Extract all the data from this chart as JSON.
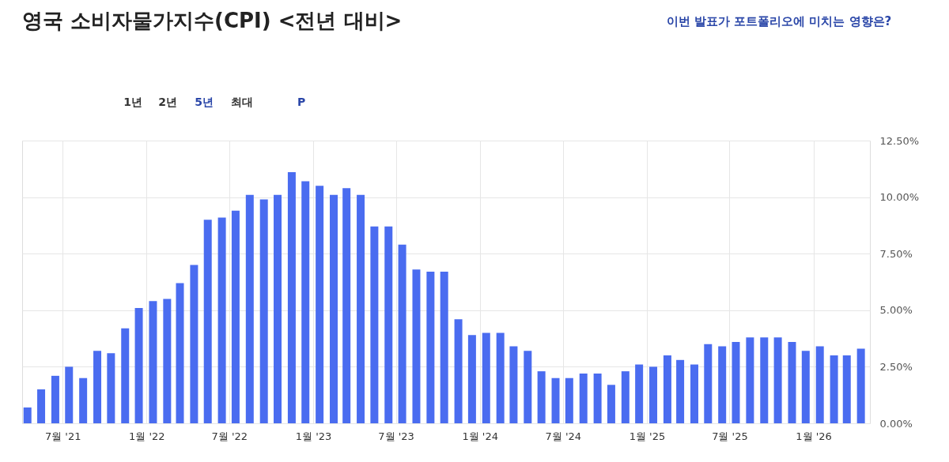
{
  "chart_data": {
    "type": "bar",
    "title": "영국 소비자물가지수(CPI) <전년 대비>",
    "annotations": [
      "1년",
      "2년",
      "5년",
      "최대",
      "P",
      "이번 발표가 포트폴리오에 미치는 영향은?"
    ],
    "x": [
      "2021-04-15",
      "2021-05-15",
      "2021-06-15",
      "2021-07-15",
      "2021-08-15",
      "2021-09-15",
      "2021-10-15",
      "2021-11-15",
      "2021-12-15",
      "2022-01-15",
      "2022-02-15",
      "2022-03-15",
      "2022-04-15",
      "2022-05-15",
      "2022-06-15",
      "2022-07-15",
      "2022-08-15",
      "2022-09-15",
      "2022-10-15",
      "2022-11-15",
      "2022-12-15",
      "2023-01-15",
      "2023-02-15",
      "2023-03-15",
      "2023-04-15",
      "2023-05-15",
      "2023-06-15",
      "2023-07-15",
      "2023-08-15",
      "2023-09-15",
      "2023-10-15",
      "2023-11-15",
      "2023-12-15",
      "2024-01-15",
      "2024-02-15",
      "2024-03-15",
      "2024-04-15",
      "2024-05-15",
      "2024-06-15",
      "2024-07-15",
      "2024-08-15",
      "2024-09-15",
      "2024-10-15",
      "2024-11-15",
      "2024-12-15",
      "2025-01-15",
      "2025-02-15",
      "2025-03-15",
      "2025-04-15",
      "2025-05-15",
      "2025-06-15",
      "2025-07-15",
      "2025-08-15",
      "2025-09-15",
      "2025-10-15",
      "2025-11-15",
      "2025-12-15",
      "2026-01-15",
      "2026-02-15",
      "2026-03-15",
      "2026-04-15"
    ],
    "values": [
      0.7,
      1.5,
      2.1,
      2.5,
      2.0,
      3.2,
      3.1,
      4.2,
      5.1,
      5.4,
      5.5,
      6.2,
      7.0,
      9.0,
      9.1,
      9.4,
      10.1,
      9.9,
      10.1,
      11.1,
      10.7,
      10.5,
      10.1,
      10.4,
      10.1,
      8.7,
      8.7,
      7.9,
      6.8,
      6.7,
      6.7,
      4.6,
      3.9,
      4.0,
      4.0,
      3.4,
      3.2,
      2.3,
      2.0,
      2.0,
      2.2,
      2.2,
      1.7,
      2.3,
      2.6,
      2.5,
      3.0,
      2.8,
      2.6,
      3.5,
      3.4,
      3.6,
      3.8,
      3.8,
      3.8,
      3.6,
      3.2,
      3.4,
      3.0,
      3.0,
      3.3
    ],
    "color": "#4a6cf0",
    "xlim": [
      "2021-04-12",
      "2026-04-26"
    ],
    "xticks": [
      {
        "value": "2021-07-01",
        "label": "7월 '21"
      },
      {
        "value": "2022-01-01",
        "label": "1월 '22"
      },
      {
        "value": "2022-07-01",
        "label": "7월 '22"
      },
      {
        "value": "2023-01-01",
        "label": "1월 '23"
      },
      {
        "value": "2023-07-01",
        "label": "7월 '23"
      },
      {
        "value": "2024-01-01",
        "label": "1월 '24"
      },
      {
        "value": "2024-07-01",
        "label": "7월 '24"
      },
      {
        "value": "2025-01-01",
        "label": "1월 '25"
      },
      {
        "value": "2025-07-01",
        "label": "7월 '25"
      },
      {
        "value": "2026-01-01",
        "label": "1월 '26"
      }
    ],
    "ylim": [
      0,
      12.5
    ],
    "yticks": [
      {
        "value": 0,
        "label": "0.00%"
      },
      {
        "value": 2.5,
        "label": "2.50%"
      },
      {
        "value": 5,
        "label": "5.00%"
      },
      {
        "value": 7.5,
        "label": "7.50%"
      },
      {
        "value": 10,
        "label": "10.00%"
      },
      {
        "value": 12.5,
        "label": "12.50%"
      }
    ],
    "grid": true
  }
}
